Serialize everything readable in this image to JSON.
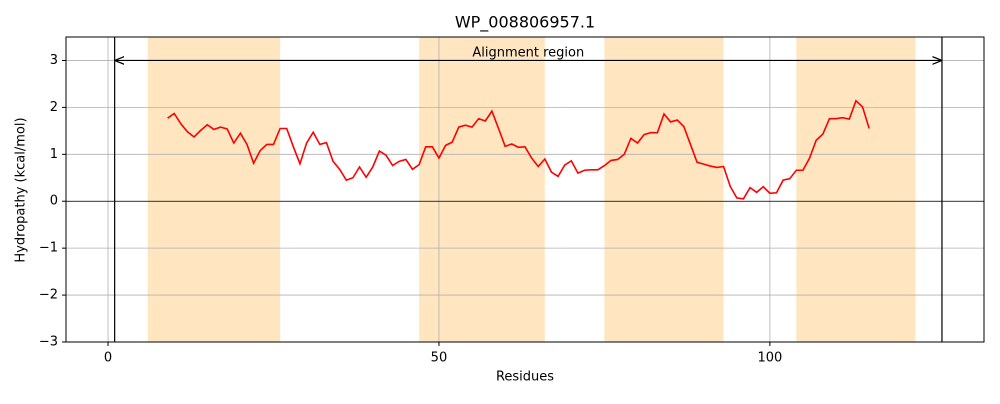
{
  "chart_data": {
    "type": "line",
    "title": "WP_008806957.1",
    "xlabel": "Residues",
    "ylabel": "Hydropathy (kcal/mol)",
    "x": [
      9,
      10,
      11,
      12,
      13,
      14,
      15,
      16,
      17,
      18,
      19,
      20,
      21,
      22,
      23,
      24,
      25,
      26,
      27,
      28,
      29,
      30,
      31,
      32,
      33,
      34,
      35,
      36,
      37,
      38,
      39,
      40,
      41,
      42,
      43,
      44,
      45,
      46,
      47,
      48,
      49,
      50,
      51,
      52,
      53,
      54,
      55,
      56,
      57,
      58,
      59,
      60,
      61,
      62,
      63,
      64,
      65,
      66,
      67,
      68,
      69,
      70,
      71,
      72,
      73,
      74,
      75,
      76,
      77,
      78,
      79,
      80,
      81,
      82,
      83,
      84,
      85,
      86,
      87,
      88,
      89,
      90,
      91,
      92,
      93,
      94,
      95,
      96,
      97,
      98,
      99,
      100,
      101,
      102,
      103,
      104,
      105,
      106,
      107,
      108,
      109,
      110,
      111,
      112,
      113,
      114,
      115
    ],
    "values": [
      1.77,
      1.87,
      1.65,
      1.48,
      1.37,
      1.51,
      1.63,
      1.53,
      1.58,
      1.54,
      1.24,
      1.45,
      1.21,
      0.81,
      1.08,
      1.21,
      1.21,
      1.55,
      1.55,
      1.16,
      0.8,
      1.24,
      1.47,
      1.21,
      1.25,
      0.85,
      0.68,
      0.45,
      0.5,
      0.73,
      0.51,
      0.73,
      1.07,
      0.98,
      0.76,
      0.85,
      0.89,
      0.68,
      0.78,
      1.16,
      1.16,
      0.92,
      1.19,
      1.26,
      1.58,
      1.62,
      1.58,
      1.76,
      1.71,
      1.92,
      1.55,
      1.17,
      1.22,
      1.15,
      1.16,
      0.92,
      0.74,
      0.9,
      0.62,
      0.53,
      0.77,
      0.86,
      0.6,
      0.66,
      0.67,
      0.67,
      0.76,
      0.87,
      0.89,
      1.0,
      1.34,
      1.24,
      1.42,
      1.46,
      1.46,
      1.86,
      1.69,
      1.73,
      1.59,
      1.21,
      0.83,
      0.79,
      0.75,
      0.72,
      0.74,
      0.32,
      0.07,
      0.05,
      0.29,
      0.19,
      0.31,
      0.17,
      0.18,
      0.45,
      0.48,
      0.66,
      0.66,
      0.92,
      1.3,
      1.43,
      1.76,
      1.76,
      1.78,
      1.75,
      2.14,
      2.01,
      1.55
    ],
    "color": "#ff0000",
    "xlim": [
      -6.35,
      132.35
    ],
    "ylim": [
      -3,
      3.5
    ],
    "xticks": [
      0,
      50,
      100
    ],
    "yticks": [
      {
        "value": -3,
        "label": "−3"
      },
      {
        "value": -2,
        "label": "−2"
      },
      {
        "value": -1,
        "label": "−1"
      },
      0,
      1,
      2,
      3
    ],
    "grid": true,
    "shaded_regions": [
      [
        6,
        26
      ],
      [
        47,
        66
      ],
      [
        75,
        93
      ],
      [
        104,
        122
      ]
    ],
    "region_color": "#ffe6c0",
    "hline": 0,
    "vlines": [
      1,
      126
    ],
    "annotation": {
      "text": "Alignment region",
      "x": 63.5,
      "y": 3.16,
      "arrow": [
        1,
        126
      ],
      "arrow_y": 3
    }
  }
}
